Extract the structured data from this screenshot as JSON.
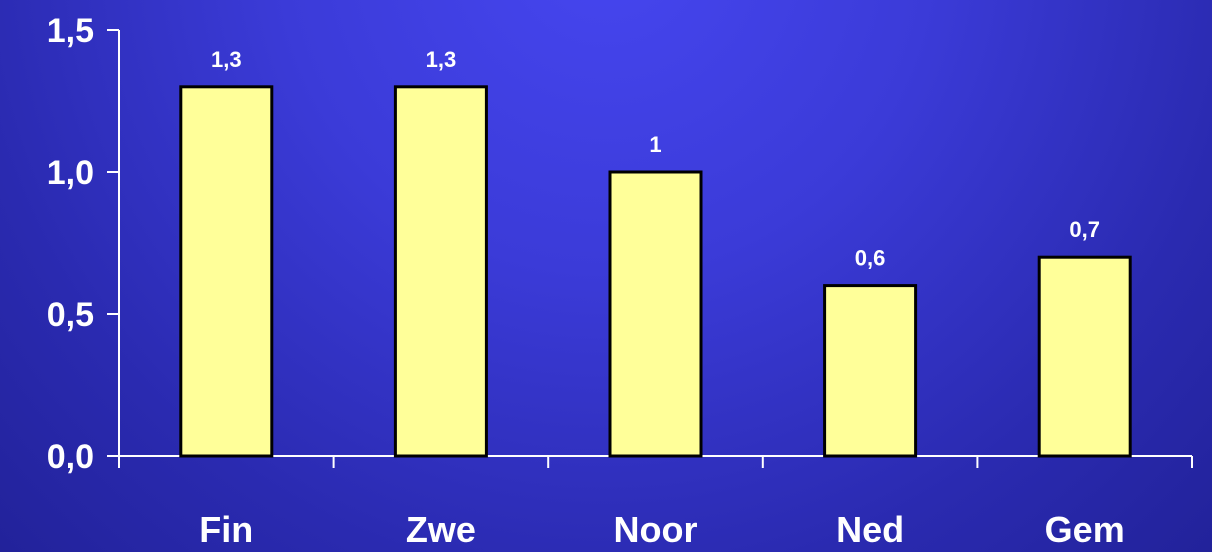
{
  "chart_data": {
    "type": "bar",
    "categories": [
      "Fin",
      "Zwe",
      "Noor",
      "Ned",
      "Gem"
    ],
    "values": [
      1.3,
      1.3,
      1.0,
      0.6,
      0.7
    ],
    "data_labels": [
      "1,3",
      "1,3",
      "1",
      "0,6",
      "0,7"
    ],
    "y_ticks": [
      0.0,
      0.5,
      1.0,
      1.5
    ],
    "y_tick_labels": [
      "0,0",
      "0,5",
      "1,0",
      "1,5"
    ],
    "ylim": [
      0,
      1.5
    ],
    "title": "",
    "xlabel": "",
    "ylabel": "",
    "grid": false,
    "legend": "none",
    "colors": {
      "bar_fill": "#ffff99",
      "bar_stroke": "#000000",
      "axis": "#ffffff",
      "text": "#ffffff"
    }
  }
}
